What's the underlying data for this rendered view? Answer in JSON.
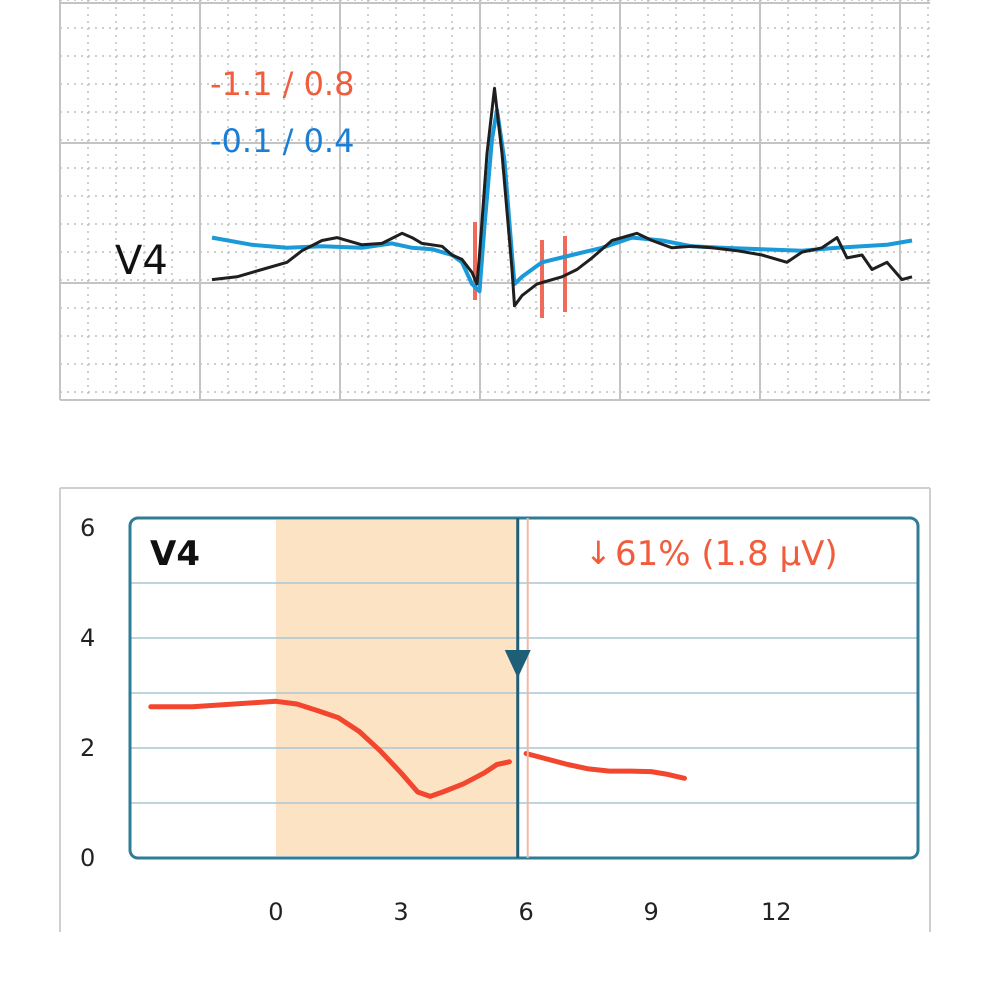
{
  "colors": {
    "grid": "#bdbdbd",
    "measured": "#1f1f1f",
    "reference": "#1a9ad8",
    "marker": "#f06a5c",
    "trend_line": "#f2472e",
    "baseline_fill": "#fce3c4",
    "frame": "#2f7c95",
    "cursor": "#1e5f78"
  },
  "chart_data": [
    {
      "type": "line",
      "lead_label": "V4",
      "readouts": [
        {
          "text": "-1.1 / 0.8",
          "color": "#f25c3c"
        },
        {
          "text": "-0.1 / 0.4",
          "color": "#1a7fd4"
        }
      ],
      "series": [
        {
          "values": [
            [
              0.0,
              -0.17
            ],
            [
              0.05,
              -0.15
            ],
            [
              0.1,
              -0.1
            ],
            [
              0.15,
              -0.05
            ],
            [
              0.18,
              0.03
            ],
            [
              0.22,
              0.1
            ],
            [
              0.25,
              0.12
            ],
            [
              0.28,
              0.09
            ],
            [
              0.3,
              0.07
            ],
            [
              0.34,
              0.08
            ],
            [
              0.38,
              0.15
            ],
            [
              0.4,
              0.12
            ],
            [
              0.42,
              0.08
            ],
            [
              0.46,
              0.06
            ],
            [
              0.48,
              0.0
            ],
            [
              0.5,
              -0.03
            ],
            [
              0.52,
              -0.12
            ],
            [
              0.53,
              -0.2
            ],
            [
              0.535,
              0.0
            ],
            [
              0.55,
              0.7
            ],
            [
              0.565,
              1.15
            ],
            [
              0.58,
              0.7
            ],
            [
              0.6,
              -0.1
            ],
            [
              0.605,
              -0.35
            ],
            [
              0.62,
              -0.28
            ],
            [
              0.65,
              -0.2
            ],
            [
              0.7,
              -0.15
            ],
            [
              0.73,
              -0.1
            ],
            [
              0.76,
              -0.02
            ],
            [
              0.8,
              0.1
            ],
            [
              0.85,
              0.15
            ],
            [
              0.88,
              0.1
            ],
            [
              0.92,
              0.05
            ],
            [
              0.96,
              0.06
            ],
            [
              1.0,
              0.05
            ],
            [
              1.05,
              0.03
            ],
            [
              1.1,
              0.0
            ],
            [
              1.15,
              -0.05
            ],
            [
              1.18,
              0.02
            ],
            [
              1.22,
              0.05
            ],
            [
              1.25,
              0.12
            ],
            [
              1.27,
              -0.02
            ],
            [
              1.3,
              0.0
            ],
            [
              1.32,
              -0.1
            ],
            [
              1.35,
              -0.05
            ],
            [
              1.38,
              -0.17
            ],
            [
              1.4,
              -0.15
            ]
          ]
        },
        {
          "values": [
            [
              0.0,
              0.12
            ],
            [
              0.08,
              0.07
            ],
            [
              0.15,
              0.05
            ],
            [
              0.22,
              0.06
            ],
            [
              0.3,
              0.05
            ],
            [
              0.36,
              0.08
            ],
            [
              0.4,
              0.05
            ],
            [
              0.44,
              0.04
            ],
            [
              0.48,
              0.0
            ],
            [
              0.5,
              -0.05
            ],
            [
              0.52,
              -0.2
            ],
            [
              0.535,
              -0.25
            ],
            [
              0.545,
              0.2
            ],
            [
              0.56,
              0.8
            ],
            [
              0.57,
              1.0
            ],
            [
              0.585,
              0.65
            ],
            [
              0.6,
              0.0
            ],
            [
              0.605,
              -0.2
            ],
            [
              0.62,
              -0.15
            ],
            [
              0.66,
              -0.05
            ],
            [
              0.72,
              0.0
            ],
            [
              0.78,
              0.05
            ],
            [
              0.84,
              0.12
            ],
            [
              0.9,
              0.1
            ],
            [
              0.96,
              0.06
            ],
            [
              1.02,
              0.05
            ],
            [
              1.1,
              0.04
            ],
            [
              1.18,
              0.03
            ],
            [
              1.25,
              0.05
            ],
            [
              1.3,
              0.06
            ],
            [
              1.35,
              0.07
            ],
            [
              1.4,
              0.1
            ]
          ]
        }
      ],
      "markers_s": [
        0.526,
        0.66,
        0.706
      ]
    },
    {
      "type": "line",
      "title": "V4",
      "change_label": "61% (1.8 µV)",
      "change_direction": "down",
      "y_ticks": [
        "0",
        "2",
        "4",
        "6"
      ],
      "x_ticks": [
        "0",
        "3",
        "6",
        "9",
        "12"
      ],
      "ylim": [
        0,
        6
      ],
      "xlim": [
        -3.5,
        15.4
      ],
      "baseline_range": [
        0,
        5.8
      ],
      "cursor_x": 5.8,
      "series": [
        {
          "x": [
            -3.0,
            -2.0,
            -1.0,
            0.0,
            0.5,
            1.0,
            1.5,
            2.0,
            2.5,
            3.0,
            3.4,
            3.7,
            4.0,
            4.5,
            5.0,
            5.3,
            5.6
          ],
          "y": [
            2.75,
            2.75,
            2.8,
            2.85,
            2.8,
            2.68,
            2.55,
            2.3,
            1.95,
            1.55,
            1.2,
            1.12,
            1.2,
            1.35,
            1.55,
            1.7,
            1.75
          ]
        },
        {
          "x": [
            6.0,
            6.5,
            7.0,
            7.5,
            8.0,
            8.5,
            9.0,
            9.4,
            9.8
          ],
          "y": [
            1.9,
            1.8,
            1.7,
            1.62,
            1.58,
            1.58,
            1.57,
            1.52,
            1.45
          ]
        }
      ]
    }
  ]
}
